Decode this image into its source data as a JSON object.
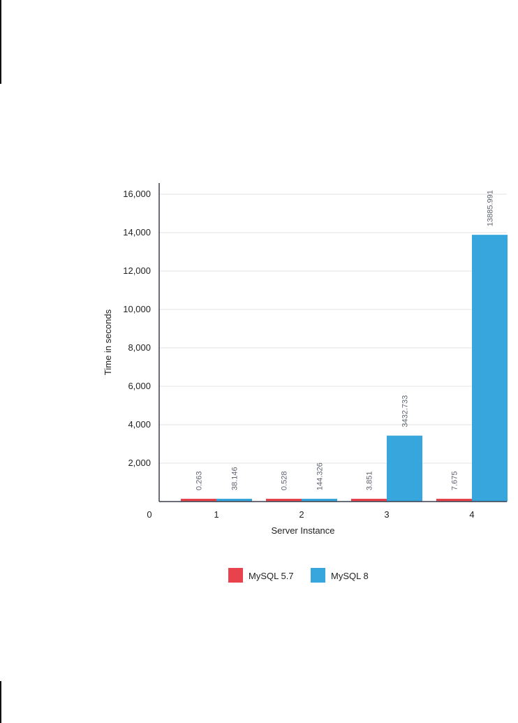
{
  "chart_data": {
    "type": "bar",
    "title": "",
    "xlabel": "Server Instance",
    "ylabel": "Time in seconds",
    "categories": [
      "1",
      "2",
      "3",
      "4"
    ],
    "series": [
      {
        "name": "MySQL 5.7",
        "values": [
          0.263,
          0.528,
          3.851,
          7.675
        ],
        "labels": [
          "0.263",
          "0.528",
          "3.851",
          "7.675"
        ],
        "color": "#e8434d"
      },
      {
        "name": "MySQL 8",
        "values": [
          38.146,
          144.326,
          3432.733,
          13885.991
        ],
        "labels": [
          "38.146",
          "144.326",
          "3432.733",
          "13885.991"
        ],
        "color": "#36a6dc"
      }
    ],
    "ylim": [
      0,
      16000
    ],
    "yticks": [
      0,
      2000,
      4000,
      6000,
      8000,
      10000,
      12000,
      14000,
      16000
    ],
    "ytick_labels": [
      "0",
      "2,000",
      "4,000",
      "6,000",
      "8,000",
      "10,000",
      "12,000",
      "14,000",
      "16,000"
    ],
    "grid": true,
    "legend_position": "bottom-center"
  }
}
